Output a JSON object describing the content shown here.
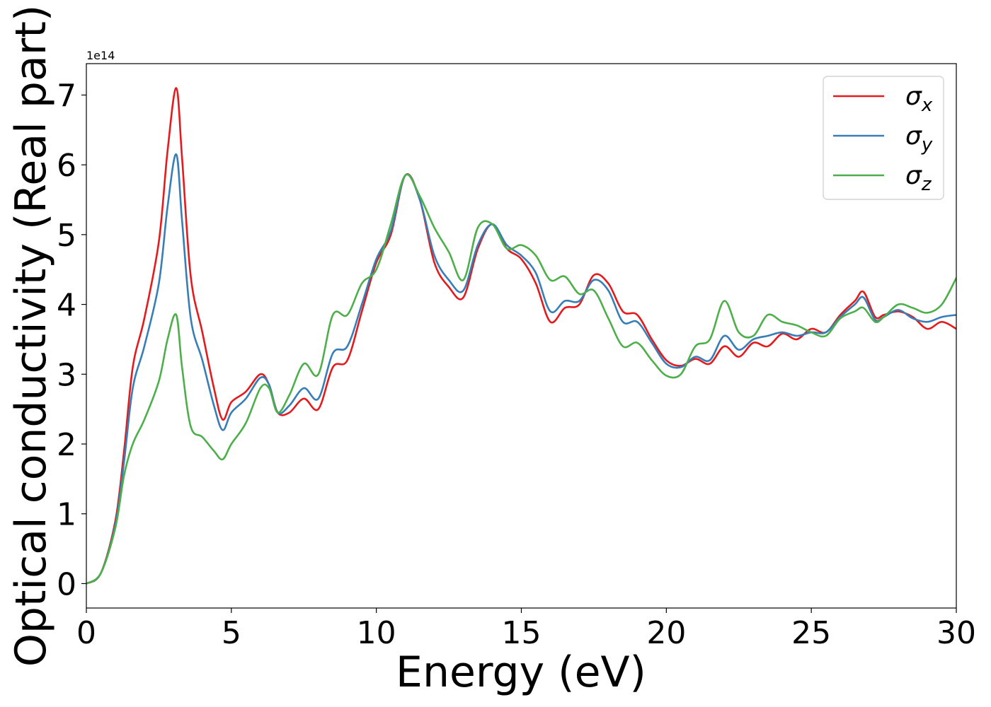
{
  "chart_data": {
    "type": "line",
    "title": "",
    "xlabel": "Energy (eV)",
    "ylabel": "Optical conductivity (Real part)",
    "y_offset_label": "1e14",
    "y_scale": 100000000000000.0,
    "xlim": [
      0,
      30
    ],
    "ylim": [
      -0.35,
      7.45
    ],
    "grid": false,
    "legend_position": "top-right",
    "x_ticks": [
      0,
      5,
      10,
      15,
      20,
      25,
      30
    ],
    "x_tick_labels": [
      "0",
      "5",
      "10",
      "15",
      "20",
      "25",
      "30"
    ],
    "y_ticks": [
      0,
      1,
      2,
      3,
      4,
      5,
      6,
      7
    ],
    "y_tick_labels": [
      "0",
      "1",
      "2",
      "3",
      "4",
      "5",
      "6",
      "7"
    ],
    "x": [
      0,
      0.5,
      1,
      1.3,
      1.6,
      2,
      2.5,
      2.8,
      3.1,
      3.3,
      3.6,
      4,
      4.4,
      4.7,
      5,
      5.5,
      6,
      6.3,
      6.6,
      7,
      7.5,
      8,
      8.5,
      9,
      9.5,
      10,
      10.5,
      11,
      11.5,
      12,
      12.5,
      13,
      13.5,
      14,
      14.5,
      15,
      15.5,
      16,
      16.5,
      17,
      17.5,
      18,
      18.5,
      19,
      19.5,
      20,
      20.5,
      21,
      21.5,
      22,
      22.5,
      23,
      23.5,
      24,
      24.5,
      25,
      25.5,
      26,
      26.5,
      26.8,
      27.2,
      27.5,
      28,
      28.5,
      29,
      29.5,
      30
    ],
    "series": [
      {
        "name": "σ_x",
        "legend_base": "σ",
        "legend_sub": "x",
        "color": "#e41a1c",
        "values": [
          0,
          0.15,
          0.9,
          1.9,
          3.1,
          3.8,
          4.9,
          6.2,
          7.1,
          6.1,
          4.4,
          3.6,
          2.8,
          2.35,
          2.6,
          2.75,
          3.0,
          2.85,
          2.45,
          2.45,
          2.65,
          2.5,
          3.1,
          3.2,
          3.9,
          4.6,
          5.0,
          5.85,
          5.5,
          4.6,
          4.25,
          4.1,
          4.8,
          5.15,
          4.8,
          4.65,
          4.3,
          3.75,
          3.95,
          4.0,
          4.42,
          4.3,
          3.9,
          3.85,
          3.5,
          3.2,
          3.12,
          3.22,
          3.15,
          3.4,
          3.25,
          3.45,
          3.4,
          3.58,
          3.5,
          3.65,
          3.6,
          3.85,
          4.05,
          4.18,
          3.82,
          3.85,
          3.9,
          3.82,
          3.65,
          3.75,
          3.65
        ]
      },
      {
        "name": "σ_y",
        "legend_base": "σ",
        "legend_sub": "y",
        "color": "#377eb8",
        "values": [
          0,
          0.15,
          0.85,
          1.75,
          2.8,
          3.4,
          4.3,
          5.4,
          6.15,
          5.2,
          3.8,
          3.2,
          2.55,
          2.2,
          2.45,
          2.65,
          2.95,
          2.85,
          2.45,
          2.55,
          2.8,
          2.65,
          3.3,
          3.4,
          4.0,
          4.65,
          5.05,
          5.85,
          5.5,
          4.7,
          4.35,
          4.2,
          4.85,
          5.15,
          4.85,
          4.7,
          4.45,
          3.9,
          4.05,
          4.05,
          4.35,
          4.2,
          3.75,
          3.75,
          3.45,
          3.15,
          3.1,
          3.25,
          3.2,
          3.55,
          3.35,
          3.5,
          3.55,
          3.6,
          3.55,
          3.6,
          3.6,
          3.82,
          4.0,
          4.1,
          3.78,
          3.82,
          3.92,
          3.8,
          3.75,
          3.82,
          3.85
        ]
      },
      {
        "name": "σ_z",
        "legend_base": "σ",
        "legend_sub": "z",
        "color": "#4daf4a",
        "values": [
          0,
          0.15,
          0.8,
          1.55,
          2.0,
          2.35,
          2.9,
          3.5,
          3.85,
          3.1,
          2.25,
          2.1,
          1.9,
          1.78,
          2.0,
          2.3,
          2.8,
          2.8,
          2.45,
          2.7,
          3.15,
          3.0,
          3.85,
          3.85,
          4.3,
          4.5,
          5.15,
          5.85,
          5.55,
          5.1,
          4.75,
          4.35,
          5.1,
          5.15,
          4.8,
          4.85,
          4.7,
          4.35,
          4.4,
          4.15,
          4.2,
          3.8,
          3.4,
          3.45,
          3.2,
          2.98,
          3.0,
          3.4,
          3.5,
          4.05,
          3.6,
          3.55,
          3.85,
          3.75,
          3.7,
          3.6,
          3.55,
          3.8,
          3.9,
          3.95,
          3.75,
          3.82,
          4.0,
          3.95,
          3.88,
          4.0,
          4.38
        ]
      }
    ]
  }
}
